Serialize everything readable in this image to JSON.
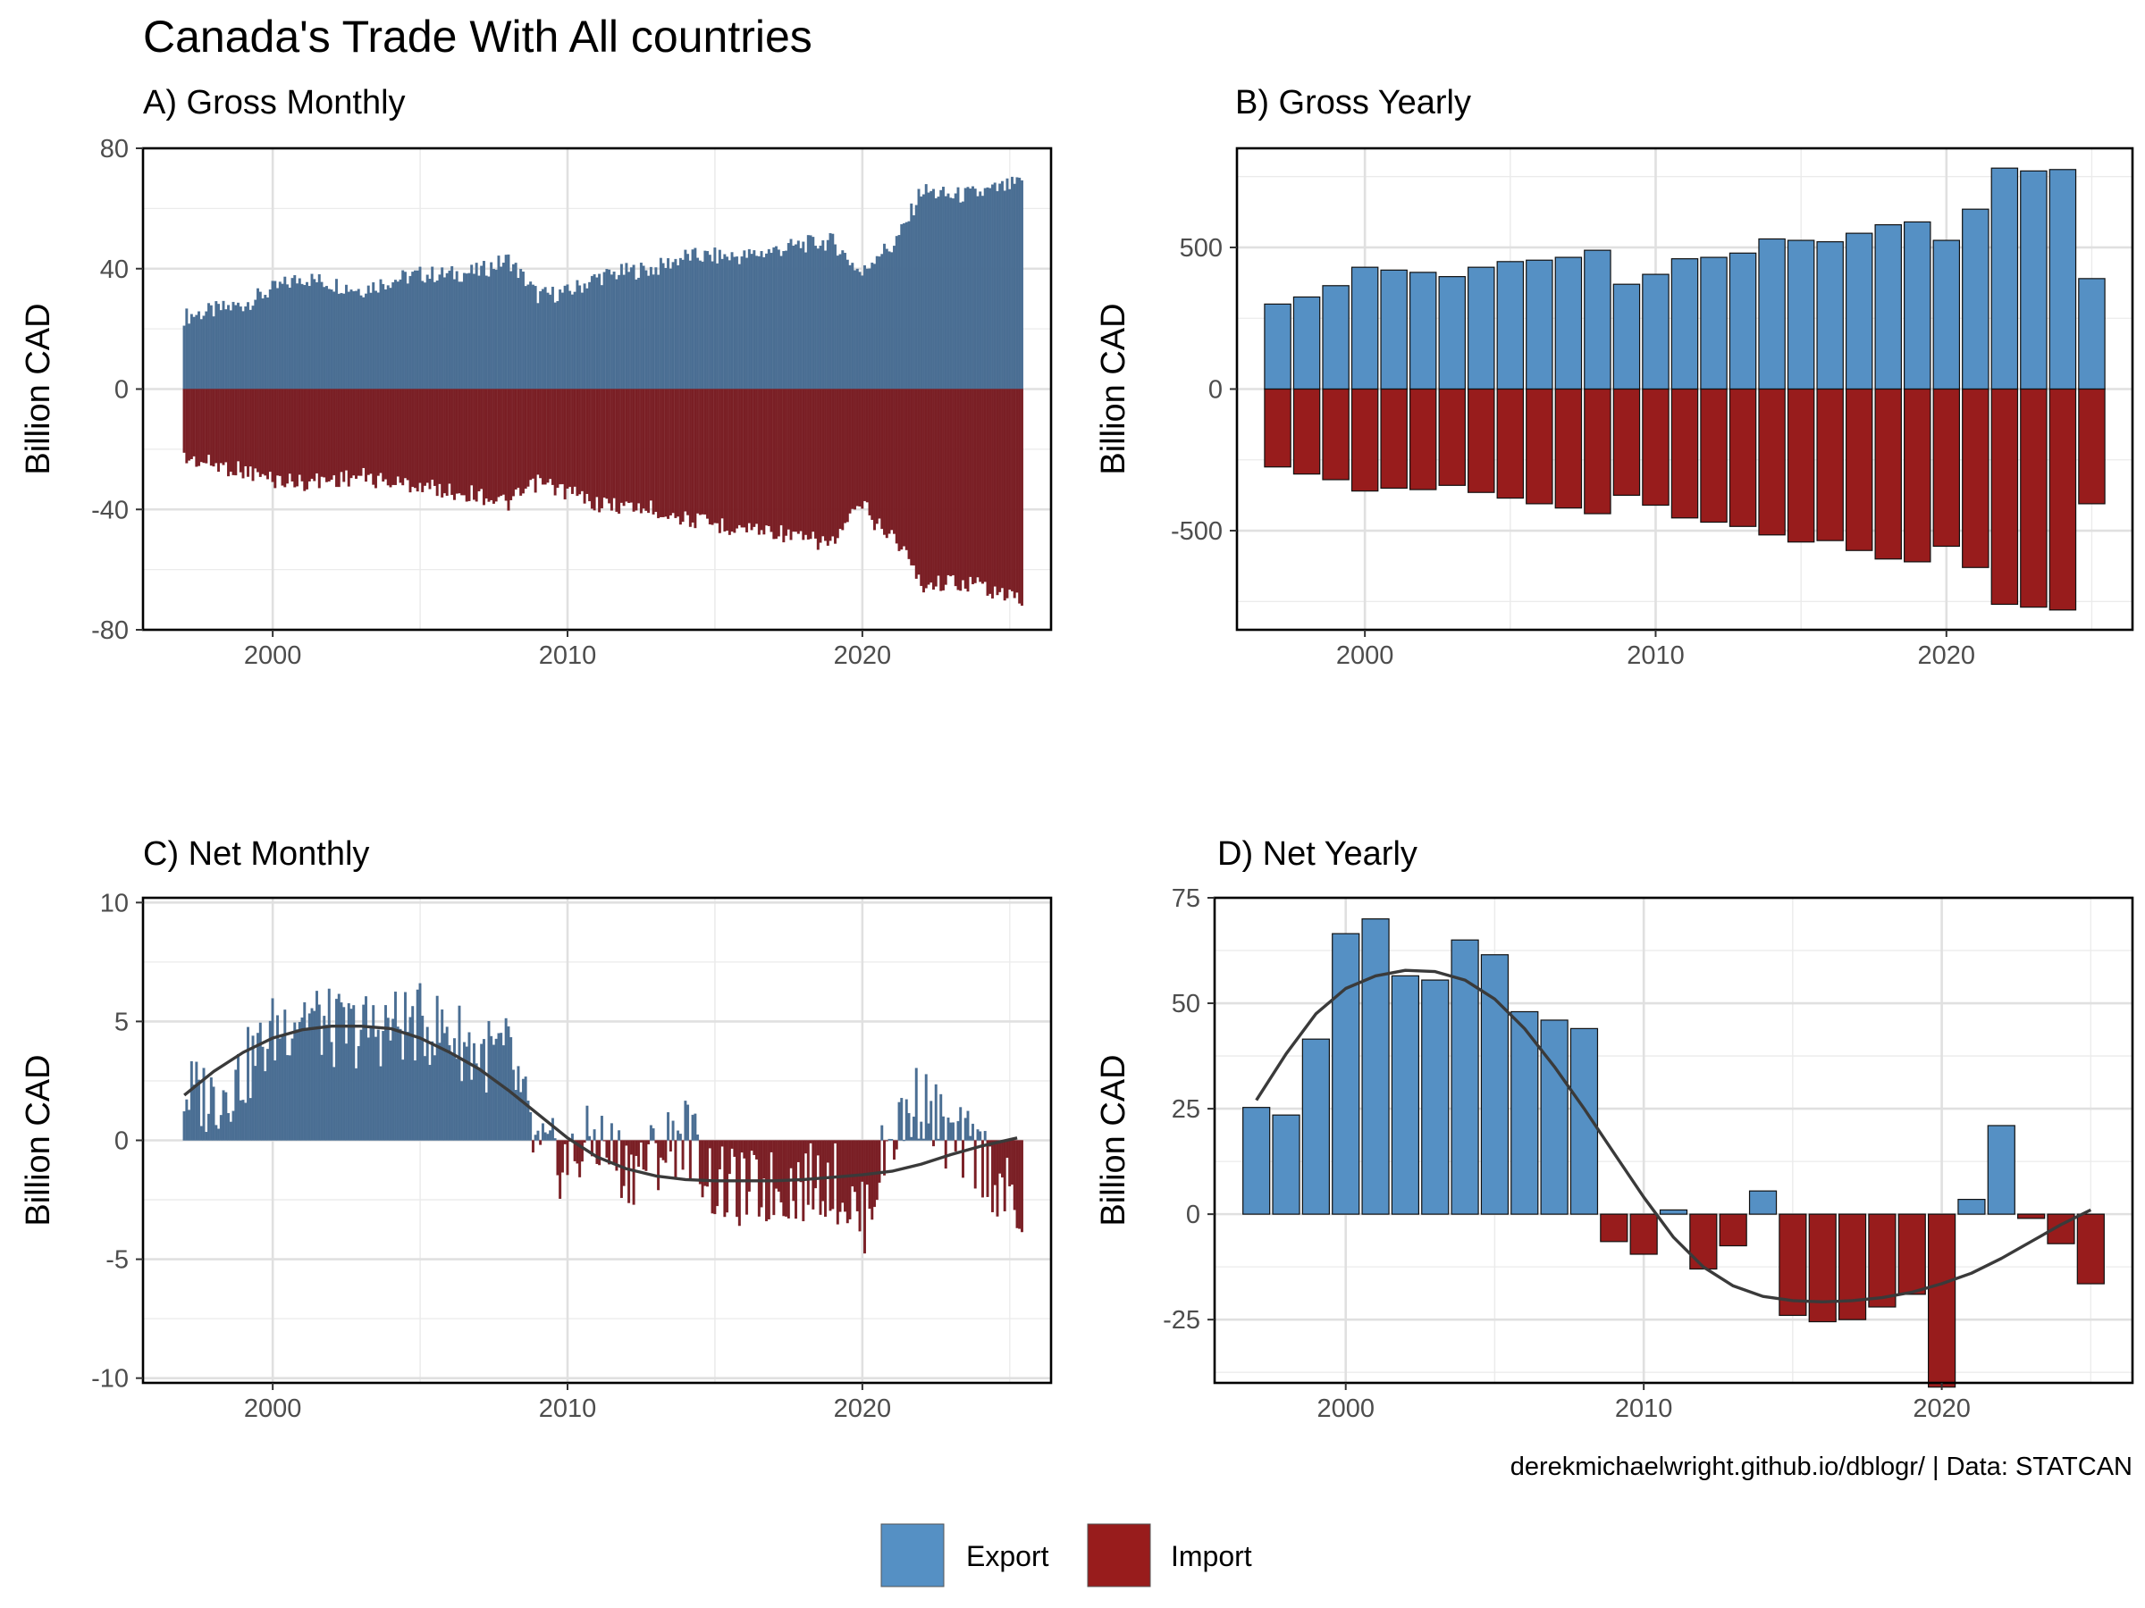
{
  "title": "Canada's Trade With All countries",
  "caption": "derekmichaelwright.github.io/dblogr/ | Data: STATCAN",
  "colors": {
    "export": "#5590c4",
    "import": "#981c1c",
    "export_monthly": "#4a6e93",
    "import_monthly": "#7a1f25",
    "trend": "#3a3a3a"
  },
  "legend": {
    "export": "Export",
    "import": "Import"
  },
  "chart_data": [
    {
      "id": "A",
      "type": "bar",
      "title": "A) Gross Monthly",
      "ylabel": "Billion CAD",
      "xlim": [
        1995.6,
        2026.4
      ],
      "ylim": [
        -80,
        80
      ],
      "xticks": [
        "2000",
        "2010",
        "2020"
      ],
      "yticks": [
        "80",
        "40",
        "0",
        "-40",
        "-80"
      ],
      "series": [
        {
          "name": "Export",
          "values": [
            [
              1997,
              24
            ],
            [
              1999,
              28
            ],
            [
              2000,
              33
            ],
            [
              2001,
              37
            ],
            [
              2002,
              35
            ],
            [
              2003,
              33
            ],
            [
              2004,
              36
            ],
            [
              2005,
              38
            ],
            [
              2006,
              38
            ],
            [
              2007,
              39
            ],
            [
              2008,
              43
            ],
            [
              2009,
              31
            ],
            [
              2010,
              32
            ],
            [
              2011,
              37
            ],
            [
              2012,
              39
            ],
            [
              2013,
              40
            ],
            [
              2014,
              44
            ],
            [
              2015,
              44
            ],
            [
              2016,
              44
            ],
            [
              2017,
              46
            ],
            [
              2018,
              48
            ],
            [
              2019,
              49
            ],
            [
              2020,
              38
            ],
            [
              2020.5,
              45
            ],
            [
              2021,
              47
            ],
            [
              2021.5,
              55
            ],
            [
              2022,
              66
            ],
            [
              2023,
              64
            ],
            [
              2024,
              65
            ],
            [
              2025.25,
              68
            ]
          ]
        },
        {
          "name": "Import",
          "values": [
            [
              1997,
              -23
            ],
            [
              1999,
              -27
            ],
            [
              2000,
              -30
            ],
            [
              2001,
              -31
            ],
            [
              2002,
              -30
            ],
            [
              2003,
              -29
            ],
            [
              2004,
              -31
            ],
            [
              2005,
              -32
            ],
            [
              2006,
              -34
            ],
            [
              2007,
              -35
            ],
            [
              2008,
              -38
            ],
            [
              2009,
              -31
            ],
            [
              2010,
              -34
            ],
            [
              2011,
              -38
            ],
            [
              2012,
              -39
            ],
            [
              2013,
              -40
            ],
            [
              2014,
              -43
            ],
            [
              2015,
              -45
            ],
            [
              2016,
              -46
            ],
            [
              2017,
              -47
            ],
            [
              2018,
              -50
            ],
            [
              2019,
              -51
            ],
            [
              2020,
              -38
            ],
            [
              2020.5,
              -45
            ],
            [
              2021,
              -48
            ],
            [
              2021.5,
              -55
            ],
            [
              2022,
              -65
            ],
            [
              2023,
              -64
            ],
            [
              2024,
              -65
            ],
            [
              2025.25,
              -70
            ]
          ]
        }
      ]
    },
    {
      "id": "B",
      "type": "bar",
      "title": "B) Gross Yearly",
      "ylabel": "Billion CAD",
      "xlim": [
        1995.6,
        2026.4
      ],
      "ylim": [
        -850,
        850
      ],
      "xticks": [
        "2000",
        "2010",
        "2020"
      ],
      "yticks": [
        "500",
        "0",
        "-500"
      ],
      "categories": [
        1997,
        1998,
        1999,
        2000,
        2001,
        2002,
        2003,
        2004,
        2005,
        2006,
        2007,
        2008,
        2009,
        2010,
        2011,
        2012,
        2013,
        2014,
        2015,
        2016,
        2017,
        2018,
        2019,
        2020,
        2021,
        2022,
        2023,
        2024,
        2025
      ],
      "series": [
        {
          "name": "Export",
          "values": [
            300,
            325,
            365,
            430,
            420,
            412,
            397,
            430,
            450,
            455,
            465,
            490,
            370,
            405,
            460,
            465,
            480,
            530,
            525,
            520,
            550,
            580,
            590,
            525,
            635,
            780,
            770,
            775,
            390
          ]
        },
        {
          "name": "Import",
          "values": [
            -275,
            -300,
            -320,
            -360,
            -350,
            -355,
            -340,
            -365,
            -385,
            -405,
            -420,
            -440,
            -375,
            -410,
            -455,
            -470,
            -485,
            -515,
            -540,
            -535,
            -570,
            -600,
            -610,
            -555,
            -630,
            -760,
            -770,
            -780,
            -405
          ]
        }
      ]
    },
    {
      "id": "C",
      "type": "bar",
      "title": "C) Net Monthly",
      "ylabel": "Billion CAD",
      "xlim": [
        1995.6,
        2026.4
      ],
      "ylim": [
        -10.2,
        10.2
      ],
      "xticks": [
        "2000",
        "2010",
        "2020"
      ],
      "yticks": [
        "10",
        "5",
        "0",
        "-5",
        "-10"
      ],
      "series": [
        {
          "name": "Net",
          "values": [
            [
              1997,
              2.0
            ],
            [
              1998,
              1.8
            ],
            [
              1999,
              2.8
            ],
            [
              2000,
              4.5
            ],
            [
              2001,
              5.5
            ],
            [
              2002,
              4.6
            ],
            [
              2003,
              4.6
            ],
            [
              2004,
              4.8
            ],
            [
              2005,
              4.9
            ],
            [
              2006,
              4.5
            ],
            [
              2007,
              3.6
            ],
            [
              2008,
              3.6
            ],
            [
              2009,
              -0.6
            ],
            [
              2010,
              -0.9
            ],
            [
              2011,
              0.1
            ],
            [
              2012,
              -1.2
            ],
            [
              2013,
              -0.6
            ],
            [
              2014,
              0.4
            ],
            [
              2015,
              -1.9
            ],
            [
              2016,
              -2.1
            ],
            [
              2017,
              -2.0
            ],
            [
              2018,
              -1.8
            ],
            [
              2019,
              -1.6
            ],
            [
              2020,
              -3.4
            ],
            [
              2021,
              0.3
            ],
            [
              2022,
              1.8
            ],
            [
              2023,
              -0.1
            ],
            [
              2024,
              -0.6
            ],
            [
              2025.25,
              -3.0
            ]
          ]
        },
        {
          "name": "Trend",
          "values": [
            [
              1997,
              1.9
            ],
            [
              1998,
              2.9
            ],
            [
              1999,
              3.7
            ],
            [
              2000,
              4.3
            ],
            [
              2001,
              4.65
            ],
            [
              2002,
              4.8
            ],
            [
              2003,
              4.8
            ],
            [
              2004,
              4.7
            ],
            [
              2005,
              4.3
            ],
            [
              2006,
              3.7
            ],
            [
              2007,
              3.0
            ],
            [
              2008,
              2.1
            ],
            [
              2009,
              1.1
            ],
            [
              2010,
              0.1
            ],
            [
              2011,
              -0.7
            ],
            [
              2012,
              -1.2
            ],
            [
              2013,
              -1.5
            ],
            [
              2014,
              -1.65
            ],
            [
              2015,
              -1.7
            ],
            [
              2016,
              -1.7
            ],
            [
              2017,
              -1.7
            ],
            [
              2018,
              -1.65
            ],
            [
              2019,
              -1.55
            ],
            [
              2020,
              -1.45
            ],
            [
              2021,
              -1.3
            ],
            [
              2022,
              -1.0
            ],
            [
              2023,
              -0.6
            ],
            [
              2024,
              -0.25
            ],
            [
              2025.25,
              0.1
            ]
          ]
        }
      ]
    },
    {
      "id": "D",
      "type": "bar",
      "title": "D) Net Yearly",
      "ylabel": "Billion CAD",
      "xlim": [
        1995.6,
        2026.4
      ],
      "ylim": [
        -40,
        75
      ],
      "xticks": [
        "2000",
        "2010",
        "2020"
      ],
      "yticks": [
        "75",
        "50",
        "25",
        "0",
        "-25"
      ],
      "categories": [
        1997,
        1998,
        1999,
        2000,
        2001,
        2002,
        2003,
        2004,
        2005,
        2006,
        2007,
        2008,
        2009,
        2010,
        2011,
        2012,
        2013,
        2014,
        2015,
        2016,
        2017,
        2018,
        2019,
        2020,
        2021,
        2022,
        2023,
        2024,
        2025
      ],
      "series": [
        {
          "name": "Net",
          "values": [
            25.3,
            23.5,
            41.5,
            66.5,
            70,
            56.5,
            55.5,
            65,
            61.5,
            48,
            46,
            44,
            -6.5,
            -9.5,
            1,
            -13,
            -7.5,
            5.5,
            -24,
            -25.5,
            -25,
            -22,
            -19,
            -41,
            3.5,
            21,
            -1,
            -7,
            -16.5
          ]
        },
        {
          "name": "Trend",
          "values": [
            [
              1997,
              27
            ],
            [
              1998,
              38
            ],
            [
              1999,
              47.5
            ],
            [
              2000,
              53.5
            ],
            [
              2001,
              56.5
            ],
            [
              2002,
              57.8
            ],
            [
              2003,
              57.5
            ],
            [
              2004,
              55.5
            ],
            [
              2005,
              51
            ],
            [
              2006,
              44
            ],
            [
              2007,
              35
            ],
            [
              2008,
              25
            ],
            [
              2009,
              14.5
            ],
            [
              2010,
              4
            ],
            [
              2011,
              -5.5
            ],
            [
              2012,
              -12.5
            ],
            [
              2013,
              -17
            ],
            [
              2014,
              -19.5
            ],
            [
              2015,
              -20.5
            ],
            [
              2016,
              -20.8
            ],
            [
              2017,
              -20.5
            ],
            [
              2018,
              -19.8
            ],
            [
              2019,
              -18.5
            ],
            [
              2020,
              -16.5
            ],
            [
              2021,
              -14
            ],
            [
              2022,
              -10.5
            ],
            [
              2023,
              -6.5
            ],
            [
              2024,
              -2.5
            ],
            [
              2025,
              1
            ]
          ]
        }
      ]
    }
  ]
}
